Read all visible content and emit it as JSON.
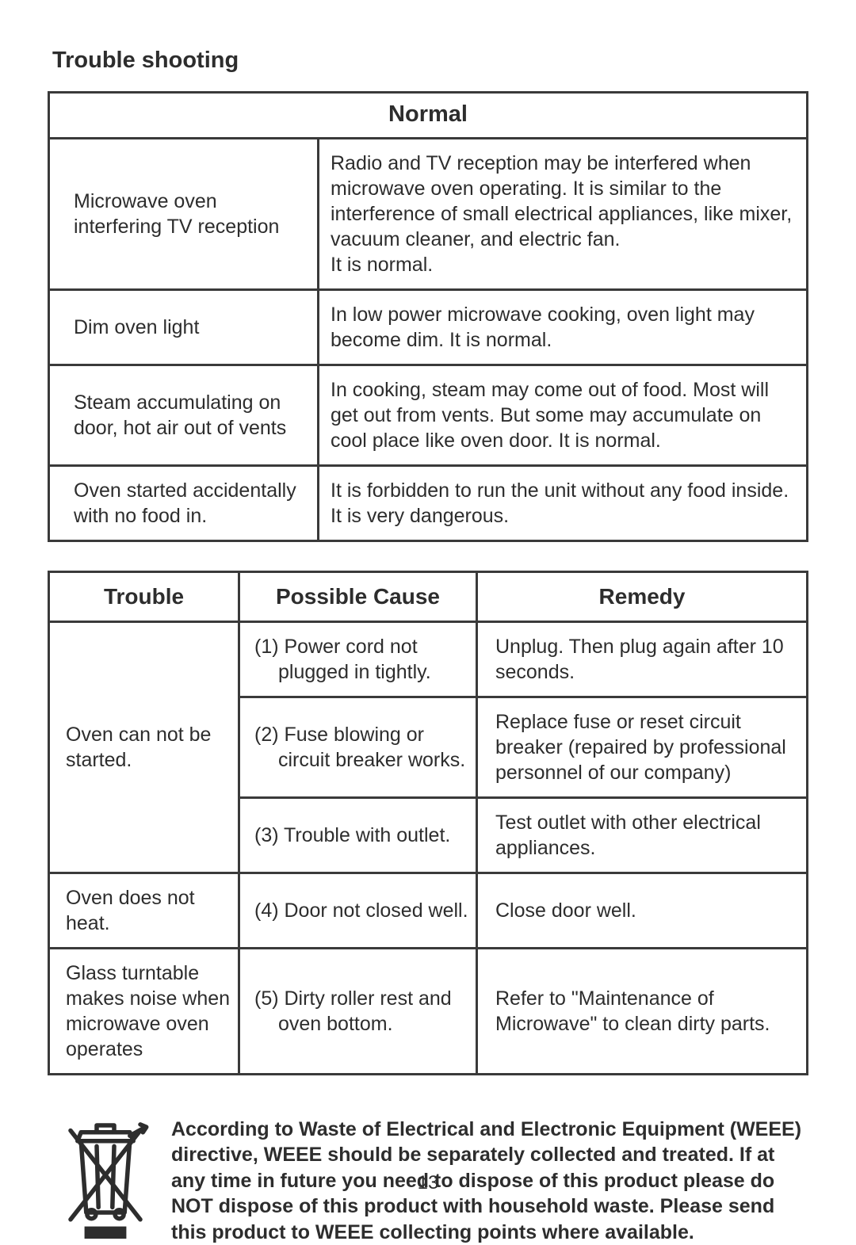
{
  "title": "Trouble shooting",
  "table1": {
    "header": "Normal",
    "rows": [
      {
        "left": "Microwave oven interfering TV reception",
        "right": "Radio and TV reception may be interfered when microwave oven operating. It is similar to the interference of small electrical appliances, like mixer, vacuum cleaner, and electric fan.\nIt is normal."
      },
      {
        "left": "Dim oven light",
        "right": "In low power microwave cooking, oven light may become dim. It is normal."
      },
      {
        "left": "Steam accumulating on door, hot air out of vents",
        "right": "In cooking, steam may come out of food. Most will get out from vents. But some may accumulate on cool place like oven door. It is normal."
      },
      {
        "left": "Oven started accidentally with no food in.",
        "right": "It is forbidden to run the unit without any food inside. It is very dangerous."
      }
    ]
  },
  "table2": {
    "headers": [
      "Trouble",
      "Possible Cause",
      "Remedy"
    ],
    "rows": [
      {
        "trouble": "Oven can not be started.",
        "cause_line1": "(1) Power cord not",
        "cause_rest": "plugged in tightly.",
        "remedy": "Unplug. Then plug again after 10 seconds."
      },
      {
        "cause_line1": "(2) Fuse blowing or",
        "cause_rest": "circuit breaker works.",
        "remedy": "Replace fuse or reset circuit breaker (repaired by professional personnel of our company)"
      },
      {
        "cause_line1": "(3) Trouble with outlet.",
        "cause_rest": "",
        "remedy": "Test outlet with other electrical appliances."
      },
      {
        "trouble": "Oven does not heat.",
        "cause_line1": "(4) Door not closed well.",
        "cause_rest": "",
        "remedy": "Close door well."
      },
      {
        "trouble": "Glass turntable makes noise when microwave oven operates",
        "cause_line1": "(5) Dirty roller rest and",
        "cause_rest": "oven bottom.",
        "remedy": "Refer to \"Maintenance of Microwave\" to clean dirty parts."
      }
    ]
  },
  "weee_text": "According to Waste of Electrical and Electronic Equipment (WEEE) directive, WEEE should be separately collected and treated. If at any time in future you need to dispose of this product please do NOT dispose of this product with household waste. Please send this product to WEEE collecting points where available.",
  "page_number": "13",
  "colors": {
    "border": "#3a3a3a",
    "text": "#2d2d2d",
    "background": "#ffffff"
  }
}
